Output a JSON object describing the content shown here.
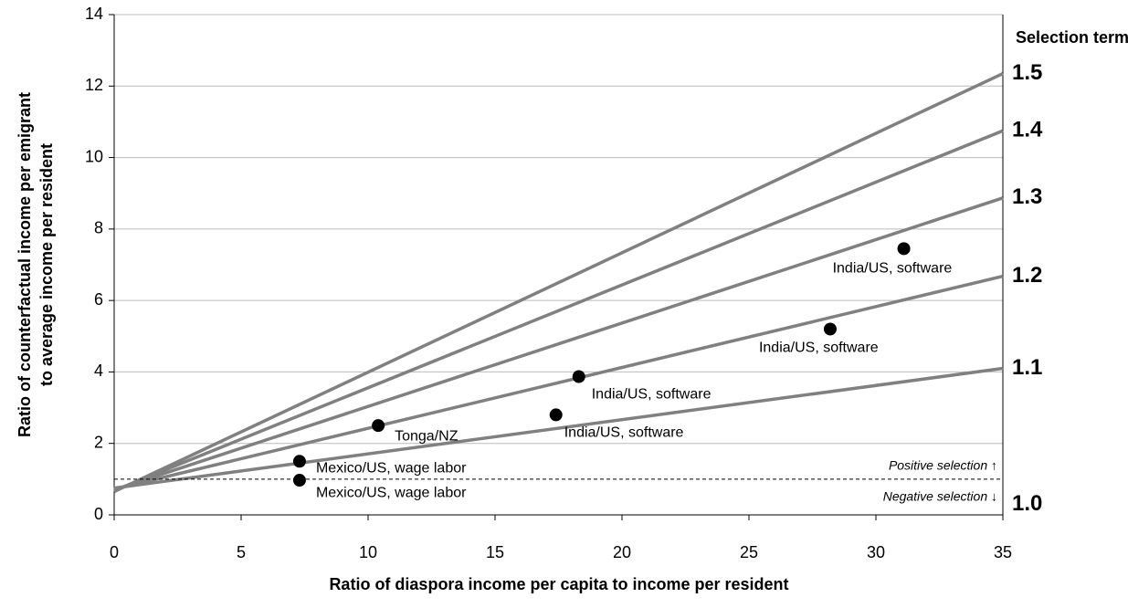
{
  "chart_data": {
    "type": "line",
    "ylabel": [
      "Ratio of counterfactual income per emigrant",
      "to average income per resident"
    ],
    "xlabel": "Ratio of diaspora income per capita to income per resident",
    "legend_title": "Selection term",
    "xlim": [
      0,
      35
    ],
    "xticks": [
      0,
      5,
      10,
      15,
      20,
      25,
      30,
      35
    ],
    "ylim": [
      0,
      14
    ],
    "yticks": [
      0,
      2,
      4,
      6,
      8,
      10,
      12,
      14
    ],
    "grid": true,
    "series": [
      {
        "name": "1.5",
        "color": "#808080",
        "x": [
          0,
          35
        ],
        "values": [
          0.65,
          12.35
        ]
      },
      {
        "name": "1.4",
        "color": "#808080",
        "x": [
          0,
          35
        ],
        "values": [
          0.68,
          10.75
        ]
      },
      {
        "name": "1.3",
        "color": "#808080",
        "x": [
          0,
          35
        ],
        "values": [
          0.7,
          8.87
        ]
      },
      {
        "name": "1.2",
        "color": "#808080",
        "x": [
          0,
          35
        ],
        "values": [
          0.72,
          6.68
        ]
      },
      {
        "name": "1.1",
        "color": "#808080",
        "x": [
          0,
          35
        ],
        "values": [
          0.75,
          4.1
        ]
      },
      {
        "name": "1.0",
        "color": "#000000",
        "dashed": true,
        "x": [
          0,
          35
        ],
        "values": [
          1,
          1
        ]
      }
    ],
    "points": {
      "color": "#000000",
      "x": [
        7.3,
        7.3,
        10.4,
        17.4,
        18.3,
        28.2,
        31.1
      ],
      "values": [
        1.5,
        0.97,
        2.5,
        2.8,
        3.87,
        5.2,
        7.45
      ],
      "labels": [
        "Mexico/US, wage labor",
        "Mexico/US, wage labor",
        "Tonga/NZ",
        "India/US, software",
        "India/US, software",
        "India/US, software",
        "India/US, software"
      ]
    },
    "annotations": [
      "Positive selection ↑",
      "Negative selection ↓"
    ]
  }
}
